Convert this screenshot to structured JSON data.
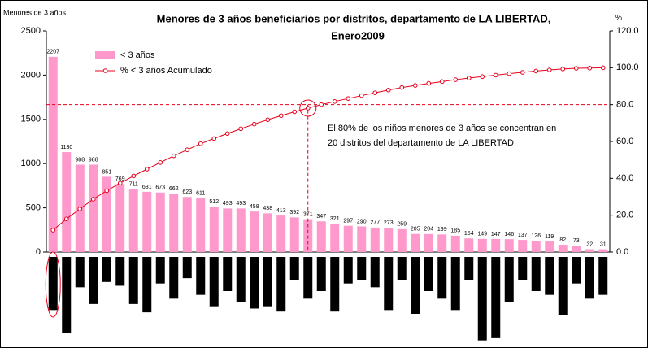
{
  "chart_data": [
    {
      "type": "pareto",
      "title": [
        "Menores de 3 años beneficiarios por distritos, departamento de LA LIBERTAD,",
        "Enero2009"
      ],
      "y_label": "Menores de 3 años",
      "y2_label": "%",
      "ylim": [
        0,
        2500
      ],
      "yticks": [
        0,
        500,
        1000,
        1500,
        2000,
        2500
      ],
      "y2lim": [
        0,
        120
      ],
      "y2ticks": [
        {
          "value": 0,
          "label": "0.0"
        },
        {
          "value": 20,
          "label": "20.0"
        },
        {
          "value": 40,
          "label": "40.0"
        },
        {
          "value": 60,
          "label": "60.0"
        },
        {
          "value": 80,
          "label": "80.0"
        },
        {
          "value": 100,
          "label": "100.0"
        },
        {
          "value": 120,
          "label": "120.0"
        }
      ],
      "reference_line": 80,
      "annotation": [
        "El 80% de los niños menores de 3 años se concentran en",
        "20 distritos del departamento de LA LIBERTAD"
      ],
      "series": [
        {
          "name": "< 3 años",
          "color": "#ff99cc",
          "values": [
            2207,
            1130,
            988,
            988,
            851,
            769,
            711,
            681,
            673,
            662,
            623,
            611,
            512,
            493,
            493,
            458,
            438,
            413,
            392,
            371,
            347,
            321,
            297,
            290,
            277,
            273,
            259,
            205,
            204,
            199,
            185,
            154,
            149,
            147,
            146,
            137,
            126,
            119,
            82,
            73,
            32,
            31
          ]
        },
        {
          "name": "% < 3 años Acumulado",
          "color": "#e8001c",
          "axis": "y2",
          "values": [
            11.9,
            18.0,
            23.4,
            28.7,
            33.3,
            37.4,
            41.3,
            45.0,
            48.6,
            52.2,
            55.5,
            58.8,
            61.6,
            64.3,
            66.9,
            69.4,
            71.8,
            74.0,
            76.1,
            78.1,
            80.0,
            81.7,
            83.3,
            84.9,
            86.4,
            87.9,
            89.3,
            90.4,
            91.5,
            92.5,
            93.5,
            94.4,
            95.2,
            96.0,
            96.8,
            97.5,
            98.2,
            98.8,
            99.3,
            99.7,
            99.8,
            100.0
          ]
        }
      ]
    },
    {
      "type": "bar-down",
      "color": "#000000",
      "ylim": [
        0,
        120
      ],
      "values": [
        70,
        100,
        40,
        62,
        33,
        38,
        62,
        73,
        35,
        55,
        28,
        50,
        65,
        45,
        60,
        68,
        65,
        72,
        30,
        55,
        45,
        72,
        35,
        30,
        40,
        70,
        30,
        75,
        45,
        55,
        70,
        30,
        110,
        107,
        60,
        30,
        45,
        50,
        77,
        35,
        55,
        50
      ]
    }
  ]
}
